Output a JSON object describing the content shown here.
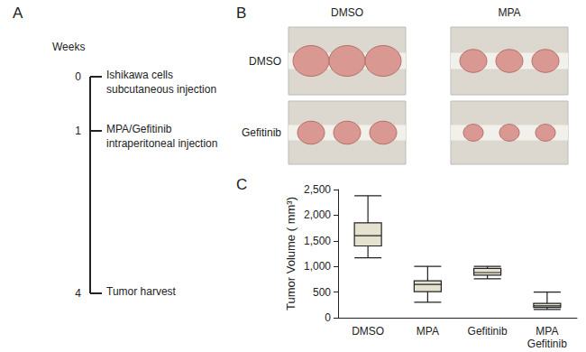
{
  "panels": {
    "A": {
      "label": "A",
      "axis_title": "Weeks",
      "events": [
        {
          "week": 0,
          "text": "Ishikawa cells\nsubcutaneous injection"
        },
        {
          "week": 1,
          "text": "MPA/Gefitinib\nintraperitoneal injection"
        },
        {
          "week": 4,
          "text": "Tumor harvest"
        }
      ]
    },
    "B": {
      "label": "B",
      "columns": [
        "DMSO",
        "MPA"
      ],
      "rows": [
        "DMSO",
        "Gefitinib"
      ]
    },
    "C": {
      "label": "C"
    }
  },
  "chart_data": {
    "type": "boxplot",
    "categories": [
      "DMSO",
      "MPA",
      "Gefitinib",
      "MPA\nGefitinib"
    ],
    "boxes": [
      {
        "min": 1170,
        "q1": 1400,
        "median": 1600,
        "q3": 1850,
        "max": 2380
      },
      {
        "min": 300,
        "q1": 510,
        "median": 650,
        "q3": 720,
        "max": 1000
      },
      {
        "min": 760,
        "q1": 830,
        "median": 880,
        "q3": 960,
        "max": 1000
      },
      {
        "min": 160,
        "q1": 200,
        "median": 230,
        "q3": 280,
        "max": 500
      }
    ],
    "color": "#e6e2d0",
    "ylabel": "Tumor Volume ( mm³)",
    "ylim": [
      0,
      2500
    ],
    "yticks": [
      0,
      500,
      1000,
      1500,
      2000,
      2500
    ],
    "grid": false
  }
}
